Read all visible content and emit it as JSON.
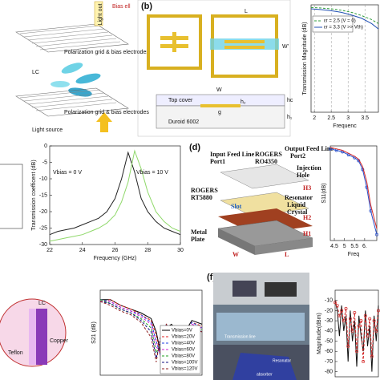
{
  "figure": {
    "panel_a": {
      "light_out": "Light out",
      "bias": "Bias ell",
      "grid_top": "Polarization grid & bias electrodes",
      "lc": "LC",
      "grid_bottom": "Polarization grid & bias electrodes",
      "light_source": "Light source"
    },
    "panel_b": {
      "label": "(b)",
      "l": "L",
      "w_prime": "W'",
      "w": "W",
      "top_cover": "Top cover",
      "substrate": "Duroid 6002",
      "g": "g",
      "h2": "h₂",
      "hc": "hc",
      "h1": "h₁"
    },
    "panel_d": {
      "label": "(d)",
      "input": "Input Feed Line",
      "port1": "Port1",
      "rogers_top": "ROGERS",
      "ro4350": "RO4350",
      "output": "Output Feed Line",
      "port2": "Port2",
      "injection": "Injection",
      "hole": "Hole",
      "h3": "H3",
      "rogers_bottom": "ROGERS",
      "rt5880": "RT5880",
      "slot": "Slot",
      "resonator": "Resonator",
      "liquid": "Liquid",
      "crystal": "Crystal",
      "h2": "H2",
      "h1": "H1",
      "metal": "Metal",
      "plate": "Plate",
      "w": "W",
      "l": "L"
    },
    "panel_e": {
      "lc": "LC",
      "copper": "Copper",
      "teflon": "Teflon"
    },
    "panel_f": {
      "label": "(f)",
      "line": "Transmission line",
      "resonator": "Resonator",
      "absorber": "absorber"
    }
  },
  "chart_data": [
    {
      "type": "line",
      "x_label": "Frequenc",
      "y_label": "Transmission Magnitude (dB)",
      "grid": true,
      "legend": "upper left",
      "xlim": [
        1.9,
        3.9
      ],
      "ylim": [
        -40,
        0
      ],
      "xticks": [
        2,
        2.5,
        3,
        3.5
      ],
      "yticks": [],
      "x": [
        1.9,
        2.2,
        2.5,
        2.8,
        3.1,
        3.4,
        3.7,
        3.9
      ],
      "series": [
        {
          "name": "εr = 2.5 (V = 0)",
          "color": "#2e9c3a",
          "style": "dashed",
          "values": [
            -1,
            -1.2,
            -1.5,
            -2,
            -2.8,
            -4,
            -5.5,
            -7
          ]
        },
        {
          "name": "εr = 3.3 (V >> Vth)",
          "color": "#1f4fb4",
          "style": "solid",
          "values": [
            -1.5,
            -1.8,
            -2.2,
            -2.8,
            -3.8,
            -5,
            -7,
            -9
          ]
        }
      ]
    },
    {
      "type": "line",
      "x_label": "Frequency (GHz)",
      "y_label": "Transmission coefficent (dB)",
      "grid": false,
      "xlim": [
        22,
        30
      ],
      "ylim": [
        -30,
        0
      ],
      "xticks": [
        22,
        24,
        26,
        28,
        30
      ],
      "yticks": [
        0,
        -5,
        -10,
        -15,
        -20,
        -25,
        -30
      ],
      "annotations": [
        "Vbias = 0 V",
        "Vbias = 10 V"
      ],
      "x": [
        22,
        22.5,
        23,
        23.5,
        24,
        24.5,
        25,
        25.5,
        26,
        26.4,
        26.8,
        27.2,
        27.6,
        28,
        28.5,
        29,
        29.5,
        30
      ],
      "series": [
        {
          "color": "#222222",
          "style": "solid",
          "values": [
            -27,
            -26,
            -25.5,
            -25,
            -24,
            -23,
            -22,
            -20,
            -16,
            -10,
            -2,
            -8,
            -16,
            -20,
            -23,
            -25,
            -26,
            -27
          ]
        },
        {
          "color": "#8fd86a",
          "style": "solid",
          "values": [
            -29,
            -28.5,
            -28,
            -27.5,
            -27,
            -26,
            -25,
            -23.5,
            -21,
            -17,
            -11,
            -1.5,
            -7,
            -14,
            -20,
            -23,
            -25,
            -26
          ]
        }
      ]
    },
    {
      "type": "line",
      "x_label": "Freq",
      "y_label": "S11(dB)",
      "grid": false,
      "xlim": [
        4.3,
        6.6
      ],
      "ylim": [
        -32,
        0
      ],
      "xticks": [
        4.5,
        5,
        5.5,
        {
          "value": 6,
          "label": "6."
        }
      ],
      "yticks": [],
      "x": [
        4.3,
        4.6,
        4.9,
        5.2,
        5.5,
        5.7,
        5.9,
        6.1,
        6.3,
        6.6
      ],
      "series": [
        {
          "color": "#2a4fc9",
          "style": "solid",
          "markers": true,
          "values": [
            -1,
            -1.5,
            -2,
            -3,
            -4,
            -5,
            -8,
            -14,
            -22,
            -30
          ]
        },
        {
          "color": "#d42a2a",
          "style": "solid",
          "values": [
            -0.5,
            -1,
            -1.5,
            -2.5,
            -3.5,
            -4.5,
            -7,
            -12,
            -20,
            -28
          ]
        }
      ]
    },
    {
      "type": "line",
      "y_label": "S21 (dB)",
      "grid": false,
      "legend": "lower right",
      "xlim": [
        0,
        10
      ],
      "ylim": [
        -45,
        0
      ],
      "xticks": [],
      "yticks": [],
      "x": [
        0,
        1,
        2,
        3,
        4,
        5,
        5.5,
        6,
        6.5,
        7,
        8,
        9,
        10
      ],
      "series": [
        {
          "name": "Vbias=0V",
          "color": "#000000",
          "style": "solid",
          "values": [
            -5,
            -5,
            -8,
            -10,
            -12,
            -15,
            -22,
            -35,
            -20,
            -18,
            -25,
            -16,
            -18
          ]
        },
        {
          "name": "Vbias=20V",
          "color": "#e02020",
          "style": "dashed",
          "values": [
            -6,
            -5,
            -8,
            -10,
            -13,
            -16,
            -24,
            -37,
            -22,
            -19,
            -26,
            -17,
            -19
          ]
        },
        {
          "name": "Vbias=40V",
          "color": "#2040e0",
          "style": "dashed",
          "values": [
            -5,
            -6,
            -9,
            -11,
            -13,
            -17,
            -27,
            -36,
            -21,
            -20,
            -27,
            -17,
            -20
          ]
        },
        {
          "name": "Vbias=60V",
          "color": "#d020d0",
          "style": "dashed",
          "values": [
            -6,
            -6,
            -9,
            -11,
            -14,
            -18,
            -30,
            -33,
            -20,
            -21,
            -28,
            -18,
            -20
          ]
        },
        {
          "name": "Vbias=80V",
          "color": "#20a020",
          "style": "dashed",
          "values": [
            -5,
            -7,
            -10,
            -12,
            -15,
            -20,
            -33,
            -28,
            -19,
            -22,
            -29,
            -19,
            -21
          ]
        },
        {
          "name": "Vbias=100V",
          "color": "#101080",
          "style": "dashed",
          "values": [
            -6,
            -7,
            -10,
            -12,
            -16,
            -22,
            -36,
            -25,
            -18,
            -23,
            -30,
            -20,
            -22
          ]
        },
        {
          "name": "Vbias=120V",
          "color": "#902020",
          "style": "dashed",
          "values": [
            -6,
            -8,
            -11,
            -13,
            -17,
            -25,
            -38,
            -22,
            -18,
            -24,
            -31,
            -21,
            -22
          ]
        }
      ]
    },
    {
      "type": "line",
      "y_label": "Magnitude(dBm)",
      "grid": false,
      "xlim": [
        0,
        10
      ],
      "ylim": [
        -85,
        0
      ],
      "xticks": [],
      "yticks": [
        -10,
        -20,
        -30,
        -40,
        -50,
        -60,
        -70,
        -80
      ],
      "x": [
        0,
        0.5,
        1,
        1.5,
        2,
        2.5,
        3,
        3.5,
        4,
        4.5,
        5,
        5.5,
        6,
        6.5,
        7,
        7.5,
        8,
        8.5,
        9,
        9.5,
        10
      ],
      "series": [
        {
          "color": "#111111",
          "style": "solid",
          "values": [
            -10,
            -20,
            -45,
            -15,
            -40,
            -25,
            -70,
            -20,
            -50,
            -30,
            -75,
            -25,
            -45,
            -60,
            -20,
            -55,
            -35,
            -80,
            -25,
            -50,
            -15
          ]
        },
        {
          "color": "#d42a2a",
          "style": "dashed",
          "markers": true,
          "values": [
            -12,
            -15,
            -25,
            -20,
            -30,
            -18,
            -55,
            -28,
            -40,
            -22,
            -60,
            -35,
            -30,
            -70,
            -25,
            -45,
            -28,
            -65,
            -30,
            -40,
            -20
          ]
        }
      ]
    }
  ]
}
